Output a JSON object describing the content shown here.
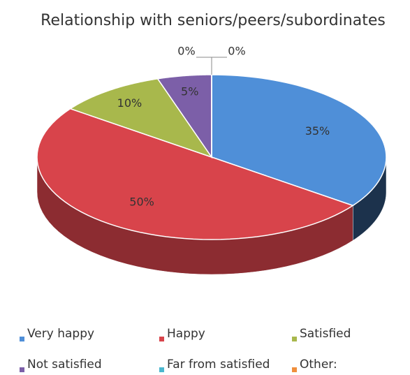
{
  "chart_data": {
    "type": "pie",
    "title": "Relationship with seniors/peers/subordinates",
    "categories": [
      "Very happy",
      "Happy",
      "Satisfied",
      "Not satisfied",
      "Far from satisfied",
      "Other:"
    ],
    "values": [
      35,
      50,
      10,
      5,
      0,
      0
    ],
    "value_labels": [
      "35%",
      "50%",
      "10%",
      "5%",
      "0%",
      "0%"
    ],
    "colors": [
      "#4f8fd8",
      "#d8444b",
      "#a8b84c",
      "#7c5fa8",
      "#4bb7cf",
      "#f08f3c"
    ],
    "legend": "bottom"
  }
}
